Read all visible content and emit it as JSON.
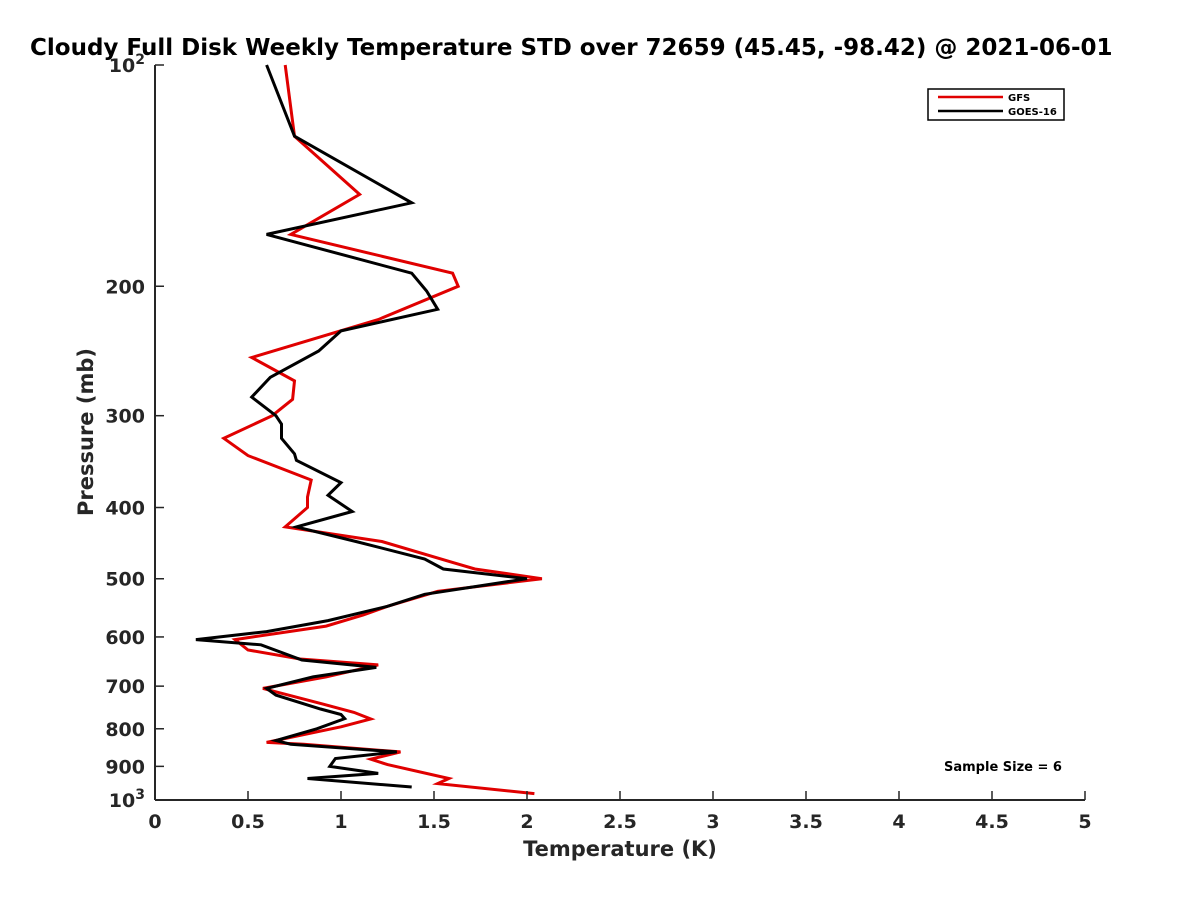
{
  "chart_data": {
    "type": "line",
    "title": "Cloudy Full Disk Weekly Temperature STD over 72659 (45.45, -98.42) @ 2021-06-01",
    "xlabel": "Temperature (K)",
    "ylabel": "Pressure (mb)",
    "xlim": [
      0,
      5
    ],
    "ylim": [
      100,
      1000
    ],
    "y_scale": "log",
    "y_reversed": true,
    "grid": false,
    "legend_position": "top-right",
    "x_ticks": [
      "0",
      "0.5",
      "1",
      "1.5",
      "2",
      "2.5",
      "3",
      "3.5",
      "4",
      "4.5",
      "5"
    ],
    "y_ticks": [
      {
        "value": 100,
        "label": "10",
        "sup": "2"
      },
      {
        "value": 200,
        "label": "200",
        "sup": ""
      },
      {
        "value": 300,
        "label": "300",
        "sup": ""
      },
      {
        "value": 400,
        "label": "400",
        "sup": ""
      },
      {
        "value": 500,
        "label": "500",
        "sup": ""
      },
      {
        "value": 600,
        "label": "600",
        "sup": ""
      },
      {
        "value": 700,
        "label": "700",
        "sup": ""
      },
      {
        "value": 800,
        "label": "800",
        "sup": ""
      },
      {
        "value": 900,
        "label": "900",
        "sup": ""
      },
      {
        "value": 1000,
        "label": "10",
        "sup": "3"
      }
    ],
    "annotation": "Sample Size = 6",
    "series": [
      {
        "name": "GFS",
        "color": "#e00000",
        "points": [
          [
            0.7,
            100
          ],
          [
            0.75,
            125
          ],
          [
            1.1,
            150
          ],
          [
            0.73,
            170
          ],
          [
            1.6,
            192
          ],
          [
            1.63,
            200
          ],
          [
            1.2,
            222
          ],
          [
            0.52,
            250
          ],
          [
            0.75,
            269
          ],
          [
            0.74,
            285
          ],
          [
            0.63,
            300
          ],
          [
            0.37,
            322
          ],
          [
            0.5,
            340
          ],
          [
            0.84,
            367
          ],
          [
            0.82,
            387
          ],
          [
            0.82,
            400
          ],
          [
            0.7,
            425
          ],
          [
            1.22,
            445
          ],
          [
            1.6,
            475
          ],
          [
            1.72,
            485
          ],
          [
            2.08,
            500
          ],
          [
            1.52,
            520
          ],
          [
            1.25,
            545
          ],
          [
            1.12,
            560
          ],
          [
            0.92,
            580
          ],
          [
            0.43,
            605
          ],
          [
            0.5,
            625
          ],
          [
            0.78,
            643
          ],
          [
            1.2,
            655
          ],
          [
            0.92,
            680
          ],
          [
            0.58,
            705
          ],
          [
            0.9,
            740
          ],
          [
            1.07,
            760
          ],
          [
            1.16,
            776
          ],
          [
            1.0,
            795
          ],
          [
            0.6,
            835
          ],
          [
            0.8,
            840
          ],
          [
            1.32,
            860
          ],
          [
            1.16,
            880
          ],
          [
            1.25,
            895
          ],
          [
            1.58,
            935
          ],
          [
            1.52,
            950
          ],
          [
            2.04,
            980
          ]
        ]
      },
      {
        "name": "GOES-16",
        "color": "#000000",
        "points": [
          [
            0.6,
            100
          ],
          [
            0.75,
            125
          ],
          [
            1.38,
            154
          ],
          [
            0.6,
            170
          ],
          [
            1.38,
            192
          ],
          [
            1.46,
            203
          ],
          [
            1.52,
            215
          ],
          [
            1.0,
            230
          ],
          [
            0.88,
            245
          ],
          [
            0.62,
            266
          ],
          [
            0.52,
            283
          ],
          [
            0.65,
            300
          ],
          [
            0.68,
            308
          ],
          [
            0.68,
            322
          ],
          [
            0.75,
            338
          ],
          [
            0.76,
            345
          ],
          [
            1.0,
            370
          ],
          [
            0.93,
            385
          ],
          [
            1.06,
            405
          ],
          [
            0.76,
            425
          ],
          [
            1.08,
            445
          ],
          [
            1.45,
            470
          ],
          [
            1.55,
            485
          ],
          [
            2.0,
            500
          ],
          [
            1.45,
            525
          ],
          [
            1.25,
            545
          ],
          [
            0.93,
            570
          ],
          [
            0.6,
            590
          ],
          [
            0.22,
            605
          ],
          [
            0.57,
            615
          ],
          [
            0.79,
            645
          ],
          [
            1.19,
            660
          ],
          [
            0.85,
            680
          ],
          [
            0.6,
            705
          ],
          [
            0.65,
            720
          ],
          [
            0.89,
            752
          ],
          [
            1.0,
            765
          ],
          [
            1.02,
            775
          ],
          [
            0.87,
            800
          ],
          [
            0.65,
            830
          ],
          [
            0.73,
            840
          ],
          [
            1.3,
            860
          ],
          [
            0.97,
            878
          ],
          [
            0.94,
            900
          ],
          [
            1.2,
            920
          ],
          [
            0.82,
            935
          ],
          [
            1.38,
            960
          ]
        ]
      }
    ]
  }
}
